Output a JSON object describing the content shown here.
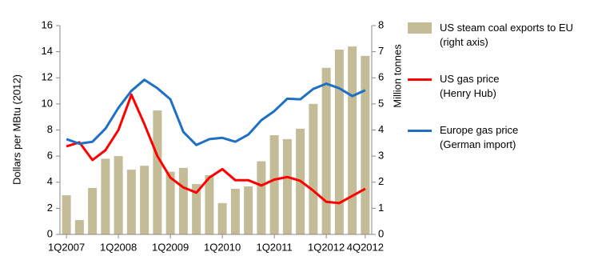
{
  "chart_data": {
    "type": "bar-line",
    "y_label": "Dollars per MBtu (2012)",
    "y2_label": "Million tonnes",
    "categories": [
      "1Q2007",
      null,
      null,
      null,
      "1Q2008",
      null,
      null,
      null,
      "1Q2009",
      null,
      null,
      null,
      "1Q2010",
      null,
      null,
      null,
      "1Q2011",
      null,
      null,
      null,
      "1Q2012",
      null,
      null,
      "4Q2012"
    ],
    "ylim": [
      0,
      16
    ],
    "yticks": [
      0,
      2,
      4,
      6,
      8,
      10,
      12,
      14,
      16
    ],
    "y2lim": [
      0,
      8
    ],
    "y2ticks": [
      0,
      1,
      2,
      3,
      4,
      5,
      6,
      7,
      8
    ],
    "legend": "right",
    "series": [
      {
        "name": "US steam coal exports to EU\n(right axis)",
        "type": "bar",
        "axis": "y2",
        "color": "#c4bc96",
        "values": [
          1.5,
          0.55,
          1.78,
          2.9,
          3.0,
          2.48,
          2.63,
          4.75,
          2.4,
          2.55,
          1.93,
          2.27,
          1.2,
          1.75,
          1.84,
          2.8,
          3.8,
          3.65,
          4.05,
          5.0,
          6.38,
          7.08,
          7.2,
          6.84
        ]
      },
      {
        "name": "US gas price\n(Henry Hub)",
        "type": "line",
        "color": "#ff0000",
        "values": [
          6.75,
          7.05,
          5.7,
          6.45,
          8.0,
          10.7,
          8.45,
          6.0,
          4.35,
          3.6,
          3.2,
          4.35,
          5.0,
          4.15,
          4.15,
          3.75,
          4.2,
          4.4,
          4.1,
          3.35,
          2.5,
          2.4,
          2.95,
          3.5
        ]
      },
      {
        "name": "Europe gas price\n(German import)",
        "type": "line",
        "color": "#1f6fc5",
        "values": [
          7.3,
          6.95,
          7.1,
          8.1,
          9.7,
          11.0,
          11.85,
          11.2,
          10.35,
          7.85,
          6.85,
          7.3,
          7.4,
          7.1,
          7.65,
          8.75,
          9.45,
          10.4,
          10.35,
          11.15,
          11.55,
          11.2,
          10.6,
          11.05
        ]
      }
    ]
  }
}
